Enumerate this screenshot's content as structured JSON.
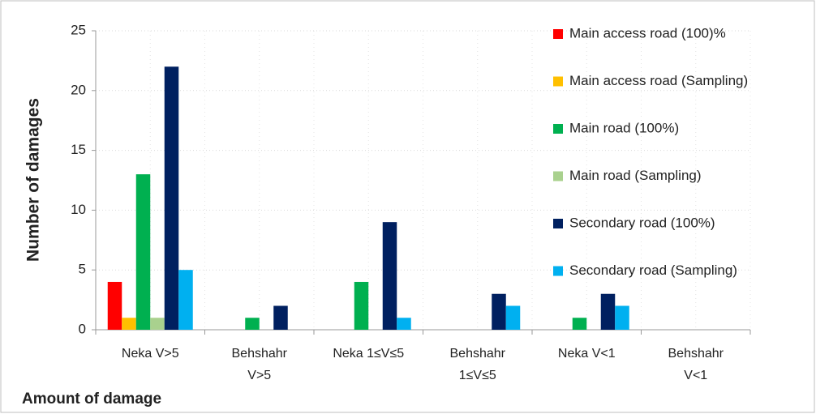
{
  "chart_data": {
    "type": "bar",
    "y_label": "Number of damages",
    "x_label": "Amount of damage",
    "categories": [
      "Neka V>5",
      "Behshahr V>5",
      "Neka 1≤V≤5",
      "Behshahr 1≤V≤5",
      "Neka V<1",
      "Behshahr V<1"
    ],
    "series": [
      {
        "name": "Main access road (100)%",
        "color": "#ff0000",
        "values": [
          4,
          0,
          0,
          0,
          0,
          0
        ]
      },
      {
        "name": "Main access road (Sampling)",
        "color": "#ffc000",
        "values": [
          1,
          0,
          0,
          0,
          0,
          0
        ]
      },
      {
        "name": "Main road (100%)",
        "color": "#00b050",
        "values": [
          13,
          1,
          4,
          0,
          1,
          0
        ]
      },
      {
        "name": "Main road (Sampling)",
        "color": "#a9d18e",
        "values": [
          1,
          0,
          0,
          0,
          0,
          0
        ]
      },
      {
        "name": "Secondary road (100%)",
        "color": "#002060",
        "values": [
          22,
          2,
          9,
          3,
          3,
          0
        ]
      },
      {
        "name": "Secondary road (Sampling)",
        "color": "#00b0f0",
        "values": [
          5,
          0,
          1,
          2,
          2,
          0
        ]
      }
    ],
    "ylim": [
      0,
      25
    ],
    "yticks": [
      0,
      5,
      10,
      15,
      20,
      25
    ],
    "grid": true,
    "legend": "right"
  }
}
